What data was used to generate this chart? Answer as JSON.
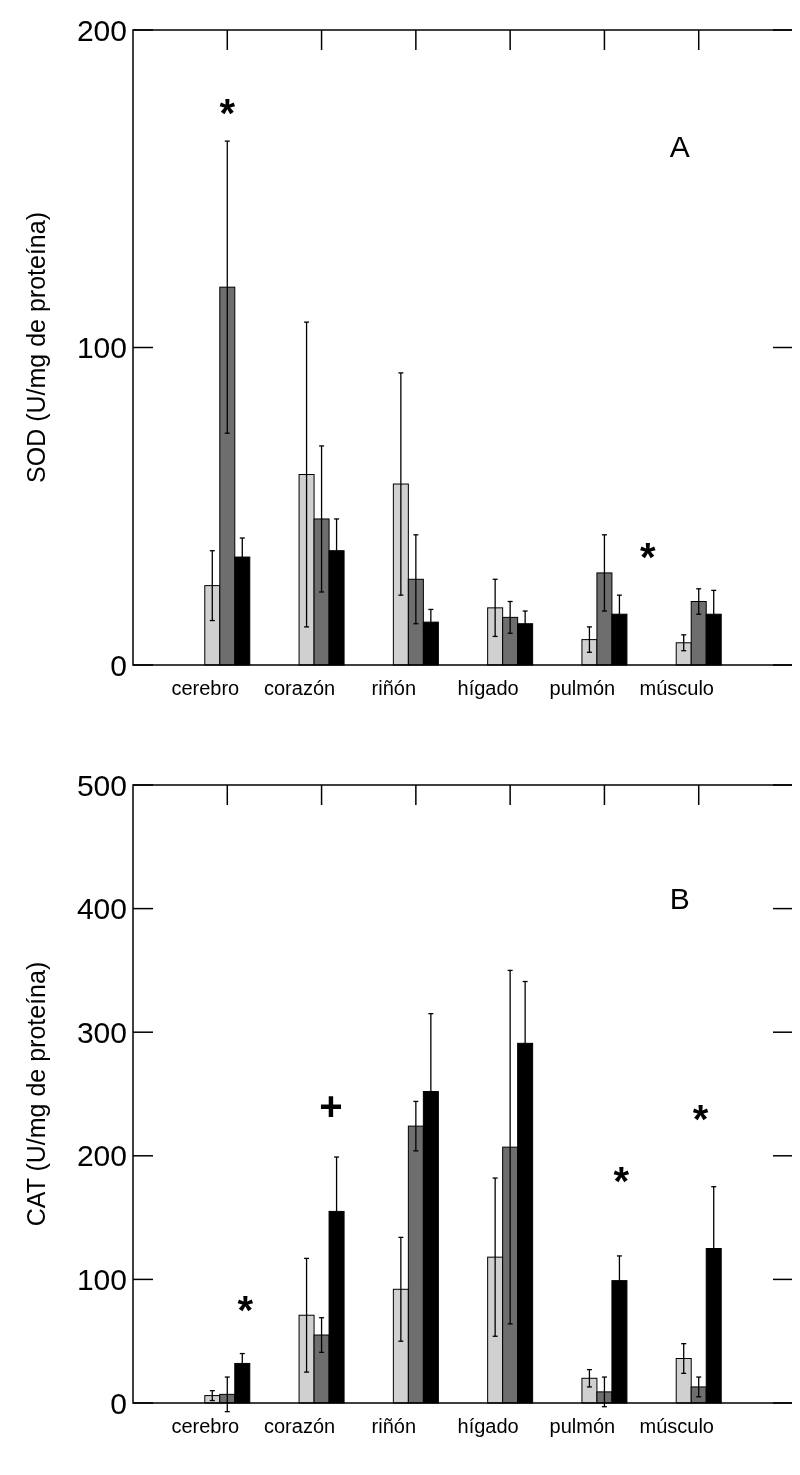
{
  "chart_data": [
    {
      "type": "bar",
      "title": "A",
      "ylabel": "SOD (U/mg de proteína)",
      "categories": [
        "cerebro",
        "corazón",
        "riñón",
        "hígado",
        "pulmón",
        "músculo"
      ],
      "ylim": [
        0,
        200
      ],
      "yticks": [
        0,
        100,
        200
      ],
      "series": [
        {
          "color": "#d0d0d0",
          "values": [
            25,
            60,
            57,
            18,
            8,
            7
          ],
          "errors": [
            11,
            48,
            35,
            9,
            4,
            2.5
          ]
        },
        {
          "color": "#6e6e6e",
          "values": [
            119,
            46,
            27,
            15,
            29,
            20
          ],
          "errors": [
            46,
            23,
            14,
            5,
            12,
            4
          ]
        },
        {
          "color": "#000000",
          "values": [
            34,
            36,
            13.5,
            13,
            16,
            16
          ],
          "errors": [
            6,
            10,
            4,
            4,
            6,
            7.5
          ]
        }
      ],
      "annotations": [
        "*",
        "*"
      ]
    },
    {
      "type": "bar",
      "title": "B",
      "ylabel": "CAT (U/mg de proteína)",
      "categories": [
        "cerebro",
        "corazón",
        "riñón",
        "hígado",
        "pulmón",
        "músculo"
      ],
      "ylim": [
        0,
        500
      ],
      "yticks": [
        0,
        100,
        200,
        300,
        400,
        500
      ],
      "series": [
        {
          "color": "#d0d0d0",
          "values": [
            6,
            71,
            92,
            118,
            20,
            36
          ],
          "errors": [
            4,
            46,
            42,
            64,
            7,
            12
          ]
        },
        {
          "color": "#6e6e6e",
          "values": [
            7,
            55,
            224,
            207,
            9,
            13
          ],
          "errors": [
            14,
            14,
            20,
            143,
            12,
            8
          ]
        },
        {
          "color": "#000000",
          "values": [
            32,
            155,
            252,
            291,
            99,
            125
          ],
          "errors": [
            8,
            44,
            63,
            50,
            20,
            50
          ]
        }
      ],
      "annotations": [
        "*",
        "+",
        "*",
        "*"
      ]
    }
  ]
}
